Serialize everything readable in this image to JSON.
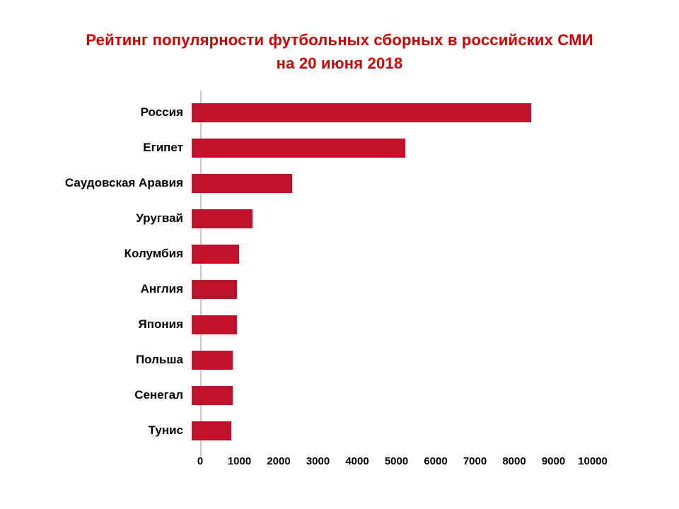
{
  "title": {
    "line1": "Рейтинг популярности футбольных сборных  в российских СМИ",
    "line2": "на 20 июня 2018",
    "color": "#cc0000"
  },
  "chart_data": {
    "type": "bar",
    "orientation": "horizontal",
    "title": "Рейтинг популярности футбольных сборных в российских СМИ на 20 июня 2018",
    "categories": [
      "Россия",
      "Египет",
      "Саудовская Аравия",
      "Уругвай",
      "Колумбия",
      "Англия",
      "Япония",
      "Польша",
      "Сенегал",
      "Тунис"
    ],
    "values": [
      8650,
      5450,
      2550,
      1550,
      1200,
      1150,
      1150,
      1050,
      1050,
      1000
    ],
    "xlabel": "",
    "ylabel": "",
    "xlim": [
      0,
      10000
    ],
    "x_ticks": [
      0,
      1000,
      2000,
      3000,
      4000,
      5000,
      6000,
      7000,
      8000,
      9000,
      10000
    ],
    "bar_color": "#c0122b",
    "grid": false,
    "legend": false
  }
}
